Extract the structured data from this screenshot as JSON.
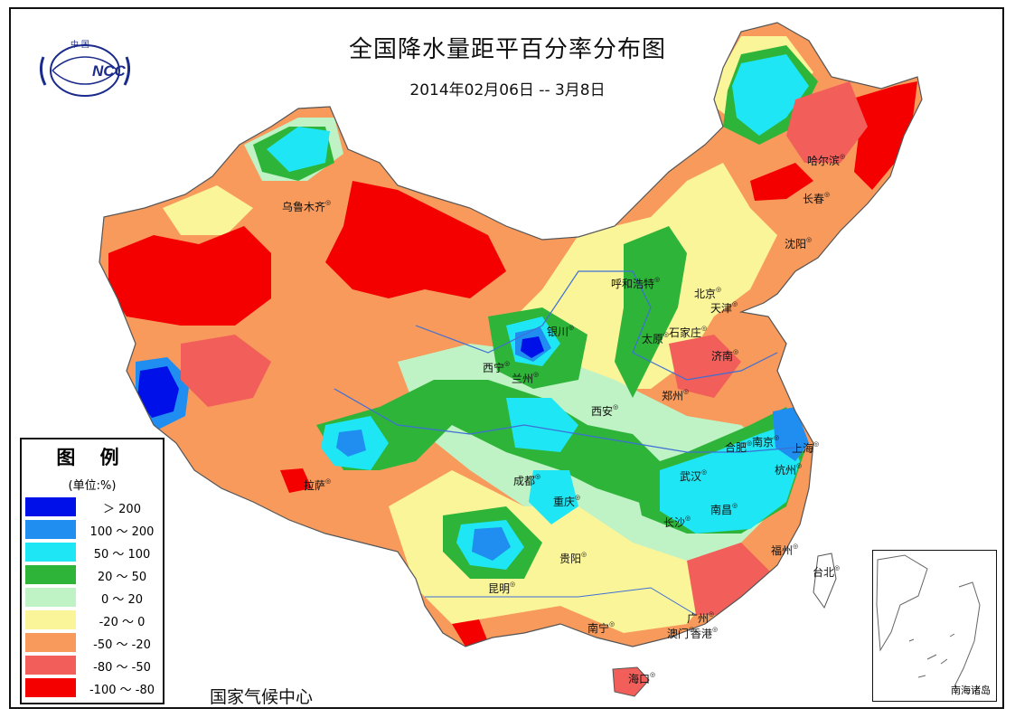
{
  "header": {
    "title": "全国降水量距平百分率分布图",
    "subtitle": "2014年02月06日 -- 3月8日"
  },
  "logo": {
    "top_text": "中 国",
    "mark": "NCC"
  },
  "legend": {
    "title": "图 例",
    "unit": "(单位:%)",
    "items": [
      {
        "label": "＞ 200",
        "color": "#0010e8"
      },
      {
        "label": "100 ～ 200",
        "color": "#1f8ef0"
      },
      {
        "label": "50 ～ 100",
        "color": "#1ee6f4"
      },
      {
        "label": "20 ～ 50",
        "color": "#2fb43a"
      },
      {
        "label": "0 ～ 20",
        "color": "#bff2c4"
      },
      {
        "label": "-20 ～ 0",
        "color": "#fbf59a"
      },
      {
        "label": "-50 ～ -20",
        "color": "#f79a5c"
      },
      {
        "label": "-80 ～ -50",
        "color": "#f25e5a"
      },
      {
        "label": "-100 ～ -80",
        "color": "#f40000"
      }
    ]
  },
  "agency": "国家气候中心",
  "inset_label": "南海诸岛",
  "cities": {
    "urumqi": "乌鲁木齐",
    "harbin": "哈尔滨",
    "changchun": "长春",
    "shenyang": "沈阳",
    "hohhot": "呼和浩特",
    "beijing": "北京",
    "tianjin": "天津",
    "yinchuan": "银川",
    "shijiazhuang": "石家庄",
    "taiyuan": "太原",
    "xining": "西宁",
    "lanzhou": "兰州",
    "jinan": "济南",
    "zhengzhou": "郑州",
    "xian": "西安",
    "nanjing": "南京",
    "hefei": "合肥",
    "shanghai": "上海",
    "lhasa": "拉萨",
    "chengdu": "成都",
    "wuhan": "武汉",
    "hangzhou": "杭州",
    "chongqing": "重庆",
    "nanchang": "南昌",
    "changsha": "长沙",
    "guiyang": "贵阳",
    "fuzhou": "福州",
    "taipei": "台北",
    "kunming": "昆明",
    "guangzhou": "广州",
    "nanning": "南宁",
    "macao": "澳门",
    "hongkong": "香港",
    "haikou": "海口"
  }
}
